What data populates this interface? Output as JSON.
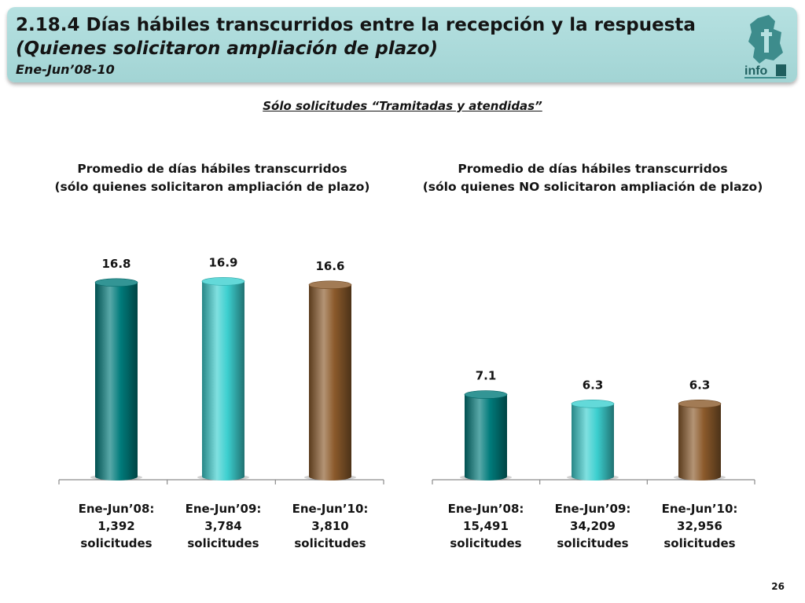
{
  "header": {
    "title": "2.18.4 Días hábiles transcurridos entre la recepción y la respuesta",
    "subtitle": "(Quienes solicitaron ampliación de plazo)",
    "period": "Ene-Jun’08-10",
    "logo_text": "info"
  },
  "subheading": "Sólo solicitudes “Tramitadas y atendidas”",
  "colors": {
    "y2008": "#007b7b",
    "y2009": "#3ccfcf",
    "y2010": "#8b5a2b"
  },
  "chart_data": [
    {
      "type": "bar",
      "title": [
        "Promedio de días hábiles transcurridos",
        "(sólo quienes solicitaron ampliación de plazo)"
      ],
      "categories": [
        [
          "Ene-Jun’08:",
          "1,392",
          "solicitudes"
        ],
        [
          "Ene-Jun’09:",
          "3,784",
          "solicitudes"
        ],
        [
          "Ene-Jun’10:",
          "3,810",
          "solicitudes"
        ]
      ],
      "values": [
        16.8,
        16.9,
        16.6
      ],
      "labels": [
        "16.8",
        "16.9",
        "16.6"
      ],
      "ylim": [
        0,
        17.4
      ]
    },
    {
      "type": "bar",
      "title": [
        "Promedio de días hábiles transcurridos",
        "(sólo quienes NO solicitaron ampliación de plazo)"
      ],
      "categories": [
        [
          "Ene-Jun’08:",
          "15,491",
          "solicitudes"
        ],
        [
          "Ene-Jun’09:",
          "34,209",
          "solicitudes"
        ],
        [
          "Ene-Jun’10:",
          "32,956",
          "solicitudes"
        ]
      ],
      "values": [
        7.1,
        6.3,
        6.3
      ],
      "labels": [
        "7.1",
        "6.3",
        "6.3"
      ],
      "ylim": [
        0,
        17.4
      ]
    }
  ],
  "page_number": "26"
}
